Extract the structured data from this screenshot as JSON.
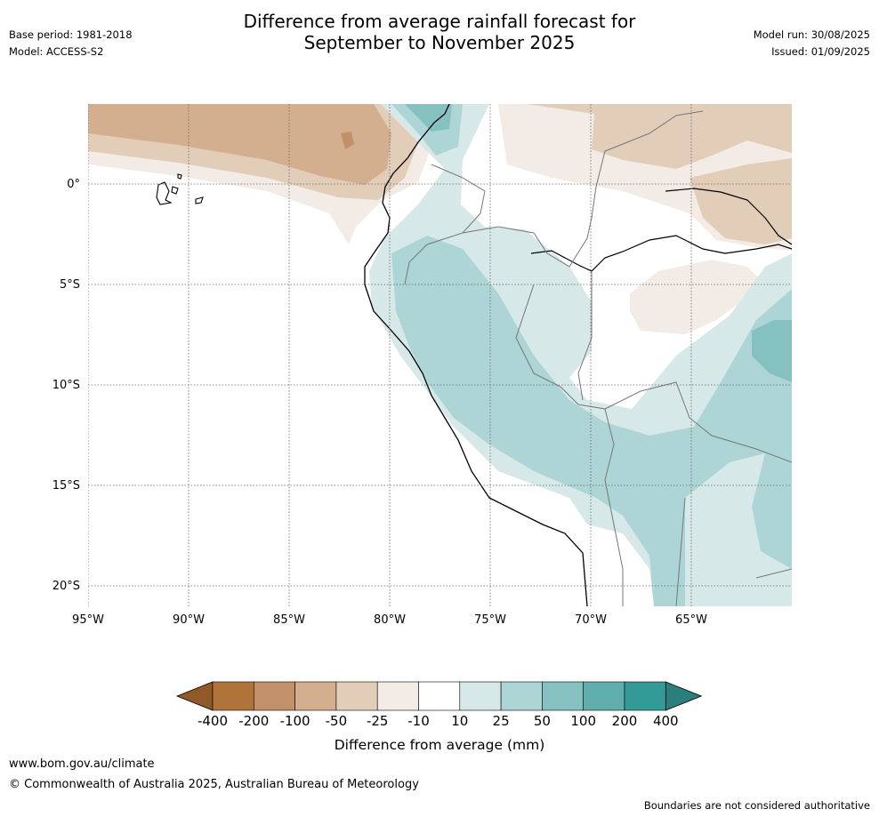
{
  "header": {
    "title_line1": "Difference from average rainfall forecast for",
    "title_line2": "September to November 2025",
    "base_period": "Base period: 1981-2018",
    "model": "Model: ACCESS-S2",
    "model_run": "Model run: 30/08/2025",
    "issued": "Issued: 01/09/2025"
  },
  "map": {
    "lat_labels": [
      "0°",
      "5°S",
      "10°S",
      "15°S",
      "20°S"
    ],
    "lon_labels": [
      "95°W",
      "90°W",
      "85°W",
      "80°W",
      "75°W",
      "70°W",
      "65°W"
    ]
  },
  "colorbar": {
    "label": "Difference from average (mm)",
    "ticks": [
      "-400",
      "-200",
      "-100",
      "-50",
      "-25",
      "-10",
      "10",
      "25",
      "50",
      "100",
      "200",
      "400"
    ],
    "colors": [
      "#8f5a28",
      "#b07339",
      "#c2916a",
      "#d3af8f",
      "#e2cdb9",
      "#f3ebe5",
      "#ffffff",
      "#d6e8e7",
      "#add5d5",
      "#86c1c1",
      "#5faeac",
      "#349a97",
      "#2a7e7b"
    ]
  },
  "footer": {
    "website": "www.bom.gov.au/climate",
    "copyright": "© Commonwealth of Australia 2025, Australian Bureau of Meteorology",
    "disclaimer": "Boundaries are not considered authoritative"
  }
}
